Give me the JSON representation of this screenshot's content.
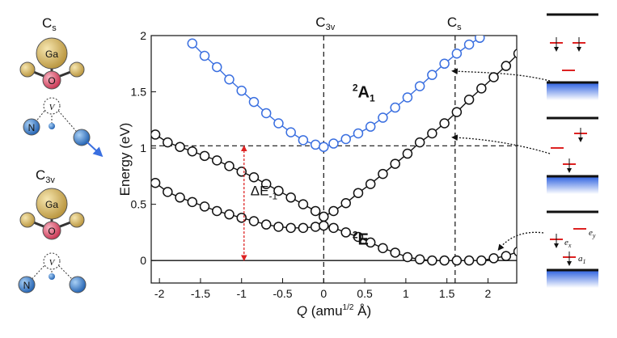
{
  "chart_data": {
    "type": "scatter",
    "xlabel_main": "Q",
    "xlabel_unit_pre": "(amu",
    "xlabel_sup": "1/2",
    "xlabel_unit_post": " Å)",
    "ylabel": "Energy (eV)",
    "xlim": [
      -2.1,
      2.35
    ],
    "ylim": [
      -0.2,
      2.0
    ],
    "x_ticks": [
      -2,
      -1.5,
      -1,
      -0.5,
      0,
      0.5,
      1,
      1.5,
      2
    ],
    "x_tick_labels": [
      "-2",
      "-1.5",
      "-1",
      "-0.5",
      "0",
      "0.5",
      "1",
      "1.5",
      "2"
    ],
    "y_ticks": [
      0,
      0.5,
      1,
      1.5,
      2
    ],
    "y_tick_labels": [
      "0",
      "0.5",
      "1",
      "1.5",
      "2"
    ],
    "top_labels": {
      "c3v": {
        "main": "C",
        "sub": "3v",
        "x": 0
      },
      "cs": {
        "main": "C",
        "sub": "s",
        "x": 1.6
      }
    },
    "reference_lines": {
      "vertical_x": [
        0,
        1.6
      ],
      "horizontal_y": 1.02,
      "baseline_y": 0
    },
    "delta_e": {
      "x": -0.97,
      "y_low": 0,
      "y_high": 1.02,
      "label_main": "ΔE",
      "label_sub": "-1",
      "color": "#dd2222"
    },
    "series": [
      {
        "name": "2A1",
        "label_sup": "2",
        "label_main": "A",
        "label_sub": "1",
        "color": "#3a6fe0",
        "label_pos": [
          0.35,
          1.45
        ],
        "x": [
          -1.6,
          -1.45,
          -1.3,
          -1.15,
          -1.0,
          -0.85,
          -0.7,
          -0.55,
          -0.4,
          -0.25,
          -0.1,
          0.0,
          0.12,
          0.27,
          0.42,
          0.57,
          0.72,
          0.87,
          1.02,
          1.17,
          1.32,
          1.47,
          1.62,
          1.77,
          1.9
        ],
        "y": [
          1.93,
          1.82,
          1.72,
          1.61,
          1.51,
          1.41,
          1.31,
          1.22,
          1.14,
          1.07,
          1.03,
          1.01,
          1.04,
          1.08,
          1.13,
          1.19,
          1.27,
          1.36,
          1.45,
          1.55,
          1.65,
          1.75,
          1.84,
          1.92,
          1.98
        ]
      },
      {
        "name": "2E upper",
        "color": "#111111",
        "x": [
          -2.05,
          -1.9,
          -1.75,
          -1.6,
          -1.45,
          -1.3,
          -1.15,
          -1.0,
          -0.85,
          -0.7,
          -0.55,
          -0.4,
          -0.25,
          -0.1,
          0.0,
          0.12,
          0.27,
          0.42,
          0.57,
          0.72,
          0.87,
          1.02,
          1.17,
          1.32,
          1.47,
          1.62,
          1.77,
          1.92,
          2.07,
          2.22,
          2.37
        ],
        "y": [
          1.12,
          1.05,
          1.01,
          0.97,
          0.93,
          0.89,
          0.84,
          0.79,
          0.74,
          0.68,
          0.62,
          0.56,
          0.5,
          0.44,
          0.39,
          0.44,
          0.51,
          0.6,
          0.68,
          0.77,
          0.86,
          0.95,
          1.05,
          1.13,
          1.22,
          1.32,
          1.43,
          1.53,
          1.63,
          1.73,
          1.84
        ]
      },
      {
        "name": "2E",
        "label_sup": "2",
        "label_main": "E",
        "label_sub": "",
        "color": "#111111",
        "label_pos": [
          0.35,
          0.14
        ],
        "x": [
          -2.05,
          -1.9,
          -1.75,
          -1.6,
          -1.45,
          -1.3,
          -1.15,
          -1.0,
          -0.85,
          -0.7,
          -0.55,
          -0.4,
          -0.25,
          -0.1,
          0.0,
          0.12,
          0.27,
          0.42,
          0.57,
          0.72,
          0.87,
          1.02,
          1.17,
          1.32,
          1.47,
          1.62,
          1.77,
          1.92,
          2.07,
          2.22,
          2.37
        ],
        "y": [
          0.69,
          0.61,
          0.56,
          0.52,
          0.48,
          0.44,
          0.41,
          0.38,
          0.35,
          0.32,
          0.3,
          0.29,
          0.29,
          0.3,
          0.31,
          0.29,
          0.25,
          0.21,
          0.16,
          0.11,
          0.07,
          0.03,
          0.01,
          0.0,
          0.0,
          0.0,
          0.0,
          0.0,
          0.02,
          0.04,
          0.08
        ]
      }
    ]
  },
  "structures": {
    "top": {
      "group_main": "C",
      "group_sub": "s",
      "atom_ga": "Ga",
      "atom_o": "O",
      "atom_v": "V",
      "atom_n": "N"
    },
    "bottom": {
      "group_main": "C",
      "group_sub": "3v",
      "atom_ga": "Ga",
      "atom_o": "O",
      "atom_v": "V",
      "atom_n": "N"
    }
  },
  "levels": {
    "orbital_ex": "e",
    "orbital_ex_sub": "x",
    "orbital_ey": "e",
    "orbital_ey_sub": "y",
    "orbital_a1": "a",
    "orbital_a1_sub": "1"
  },
  "colors": {
    "ga": "#d9b65a",
    "o": "#e0506a",
    "n": "#3d86d8",
    "blue": "#3a6fe0",
    "red": "#dd2222",
    "vb": "#2a5fe0"
  }
}
